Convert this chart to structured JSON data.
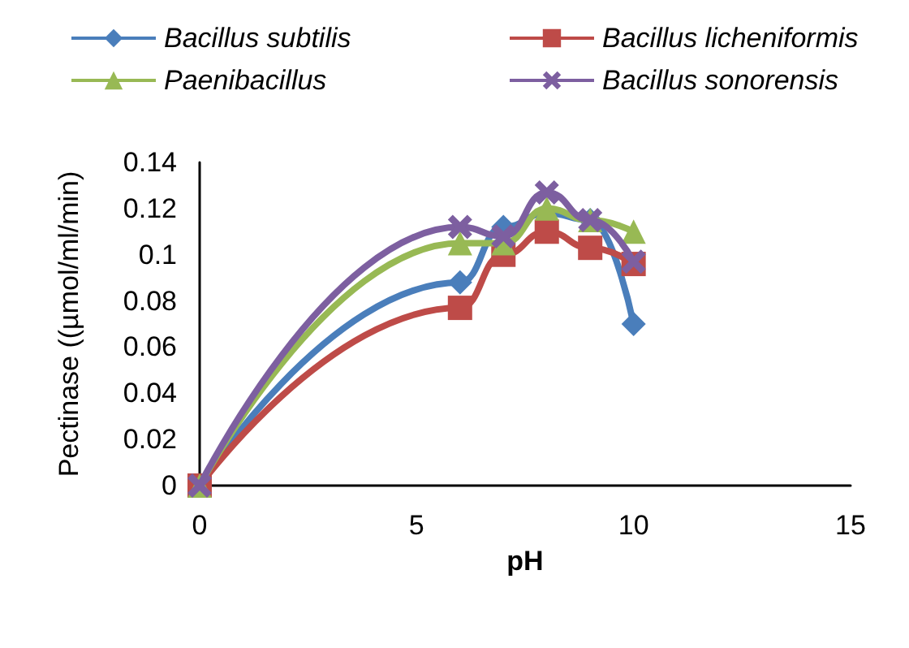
{
  "chart_data": {
    "type": "line",
    "xlabel": "pH",
    "ylabel": "Pectinase ((µmol/ml/min)",
    "x": [
      0,
      6,
      7,
      8,
      9,
      10
    ],
    "series": [
      {
        "name": "Bacillus subtilis",
        "color": "#4a7ebb",
        "marker": "diamond",
        "values": [
          0,
          0.088,
          0.112,
          0.118,
          0.115,
          0.07
        ]
      },
      {
        "name": "Bacillus licheniformis",
        "color": "#be4b48",
        "marker": "square",
        "values": [
          0,
          0.077,
          0.1,
          0.11,
          0.103,
          0.096
        ]
      },
      {
        "name": "Paenibacillus",
        "color": "#98b954",
        "marker": "triangle",
        "values": [
          0,
          0.105,
          0.105,
          0.12,
          0.115,
          0.11
        ]
      },
      {
        "name": "Bacillus sonorensis",
        "color": "#7d5fa0",
        "marker": "cross",
        "values": [
          0,
          0.112,
          0.108,
          0.127,
          0.115,
          0.097
        ]
      }
    ],
    "xlim": [
      0,
      15
    ],
    "xticks": [
      0,
      5,
      10,
      15
    ],
    "ylim": [
      0,
      0.14
    ],
    "yticks": [
      0,
      0.02,
      0.04,
      0.06,
      0.08,
      0.1,
      0.12,
      0.14
    ],
    "grid": false,
    "legend": "top"
  }
}
